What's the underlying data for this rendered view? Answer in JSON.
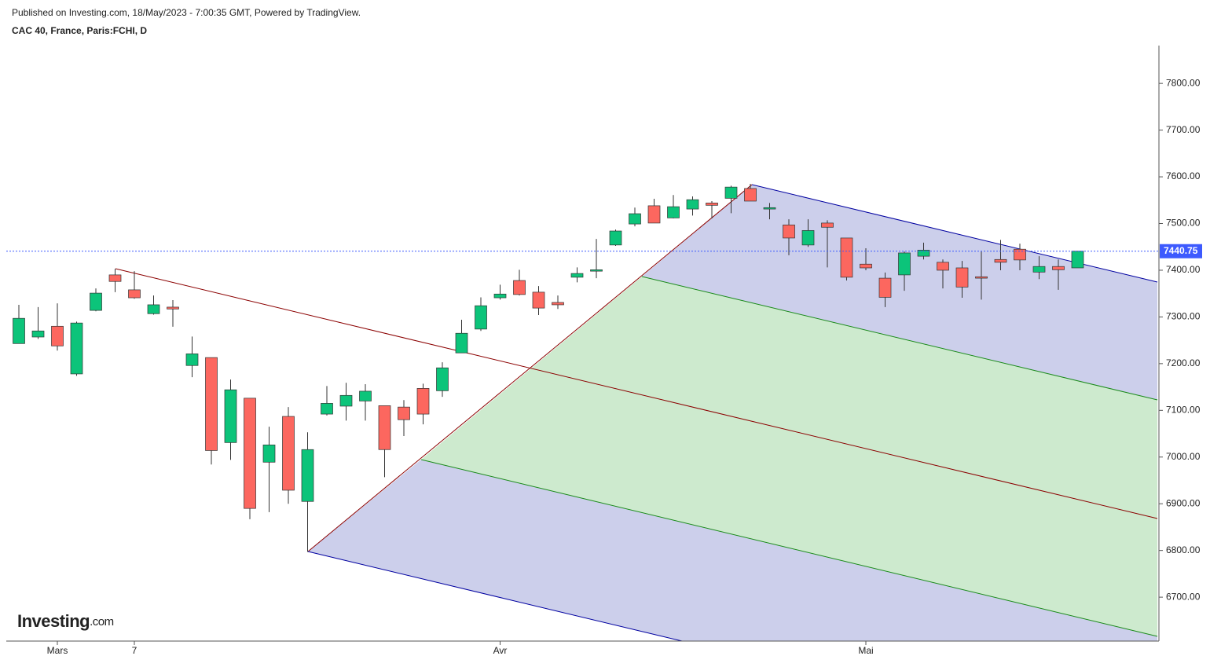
{
  "header": {
    "published": "Published on Investing.com, 18/May/2023 - 7:00:35 GMT, Powered by TradingView.",
    "logo": "Investing",
    "logo_suffix": ".com"
  },
  "chart_data": {
    "type": "candlestick",
    "title": "CAC 40, France, Paris:FCHI, D",
    "categories": [
      null,
      null,
      "Mars",
      null,
      null,
      null,
      "7",
      null,
      null,
      null,
      null,
      null,
      null,
      null,
      null,
      null,
      null,
      null,
      null,
      null,
      null,
      null,
      null,
      null,
      null,
      "Avr",
      null,
      null,
      null,
      null,
      null,
      null,
      null,
      null,
      null,
      null,
      null,
      null,
      null,
      null,
      null,
      null,
      null,
      null,
      "Mai",
      null,
      null,
      null,
      null,
      null,
      null,
      null,
      null,
      null,
      null,
      null
    ],
    "open": [
      7243,
      7257,
      7280,
      7178,
      7314,
      7390,
      7358,
      7307,
      7321,
      7196,
      7213,
      7031,
      7126,
      6989,
      7087,
      6905,
      7092,
      7109,
      7120,
      7110,
      7107,
      7147,
      7142,
      7223,
      7274,
      7341,
      7378,
      7353,
      7331,
      7385,
      7398,
      7454,
      7499,
      7538,
      7512,
      7531,
      7544,
      7554,
      7575,
      7531,
      7497,
      7454,
      7501,
      7469,
      7413,
      7383,
      7390,
      7430,
      7417,
      7405,
      7386,
      7423,
      7445,
      7396,
      7408,
      7405
    ],
    "high": [
      7326,
      7321,
      7329,
      7290,
      7361,
      7403,
      7398,
      7346,
      7336,
      7258,
      7213,
      7166,
      7126,
      7065,
      7107,
      7053,
      7152,
      7159,
      7156,
      7110,
      7122,
      7157,
      7203,
      7294,
      7342,
      7369,
      7401,
      7366,
      7346,
      7406,
      7467,
      7487,
      7534,
      7553,
      7561,
      7558,
      7548,
      7581,
      7585,
      7544,
      7509,
      7509,
      7507,
      7469,
      7447,
      7395,
      7440,
      7459,
      7423,
      7420,
      7440,
      7465,
      7457,
      7430,
      7423,
      7440.75
    ],
    "low": [
      7243,
      7253,
      7228,
      7174,
      7312,
      7353,
      7339,
      7305,
      7279,
      7171,
      6984,
      6994,
      6867,
      6882,
      6900,
      6797,
      7089,
      7078,
      7078,
      6957,
      7045,
      7070,
      7129,
      7223,
      7270,
      7337,
      7346,
      7304,
      7317,
      7374,
      7383,
      7452,
      7494,
      7501,
      7511,
      7517,
      7511,
      7522,
      7548,
      7509,
      7432,
      7450,
      7406,
      7378,
      7400,
      7321,
      7356,
      7423,
      7361,
      7341,
      7337,
      7400,
      7400,
      7381,
      7358,
      7405
    ],
    "close": [
      7297,
      7270,
      7238,
      7287,
      7351,
      7376,
      7341,
      7326,
      7317,
      7221,
      7014,
      7144,
      6890,
      7026,
      6929,
      7016,
      7115,
      7132,
      7141,
      7016,
      7080,
      7092,
      7191,
      7265,
      7324,
      7349,
      7348,
      7319,
      7326,
      7393,
      7401,
      7484,
      7521,
      7501,
      7536,
      7551,
      7539,
      7578,
      7548,
      7534,
      7469,
      7485,
      7492,
      7385,
      7405,
      7342,
      7437,
      7443,
      7400,
      7364,
      7383,
      7417,
      7422,
      7408,
      7401,
      7440.75
    ],
    "up_color": "#0cc47a",
    "down_color": "#fc675f",
    "last_price": 7440.75,
    "last_price_color": "#3d5afe",
    "ylim": [
      6606,
      7881
    ],
    "yticks": [
      {
        "value": 6700,
        "label": "6700.00"
      },
      {
        "value": 6800,
        "label": "6800.00"
      },
      {
        "value": 6900,
        "label": "6900.00"
      },
      {
        "value": 7000,
        "label": "7000.00"
      },
      {
        "value": 7100,
        "label": "7100.00"
      },
      {
        "value": 7200,
        "label": "7200.00"
      },
      {
        "value": 7300,
        "label": "7300.00"
      },
      {
        "value": 7400,
        "label": "7400.00"
      },
      {
        "value": 7500,
        "label": "7500.00"
      },
      {
        "value": 7600,
        "label": "7600.00"
      },
      {
        "value": 7700,
        "label": "7700.00"
      },
      {
        "value": 7800,
        "label": "7800.00"
      }
    ]
  }
}
